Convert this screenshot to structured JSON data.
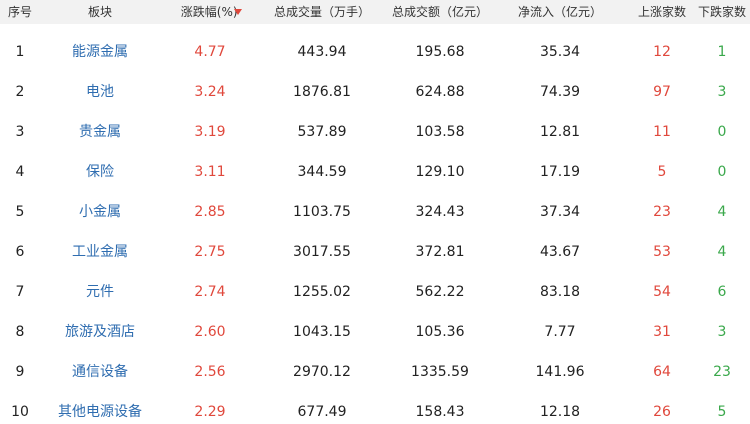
{
  "table": {
    "header": [
      "序号",
      "板块",
      "涨跌幅(%)",
      "总成交量（万手）",
      "总成交额（亿元）",
      "净流入（亿元）",
      "上涨家数",
      "下跌家数"
    ],
    "rows": [
      [
        "1",
        "能源金属",
        "4.77",
        "443.94",
        "195.68",
        "35.34",
        "12",
        "1"
      ],
      [
        "2",
        "电池",
        "3.24",
        "1876.81",
        "624.88",
        "74.39",
        "97",
        "3"
      ],
      [
        "3",
        "贵金属",
        "3.19",
        "537.89",
        "103.58",
        "12.81",
        "11",
        "0"
      ],
      [
        "4",
        "保险",
        "3.11",
        "344.59",
        "129.10",
        "17.19",
        "5",
        "0"
      ],
      [
        "5",
        "小金属",
        "2.85",
        "1103.75",
        "324.43",
        "37.34",
        "23",
        "4"
      ],
      [
        "6",
        "工业金属",
        "2.75",
        "3017.55",
        "372.81",
        "43.67",
        "53",
        "4"
      ],
      [
        "7",
        "元件",
        "2.74",
        "1255.02",
        "562.22",
        "83.18",
        "54",
        "6"
      ],
      [
        "8",
        "旅游及酒店",
        "2.60",
        "1043.15",
        "105.36",
        "7.77",
        "31",
        "3"
      ],
      [
        "9",
        "通信设备",
        "2.56",
        "2970.12",
        "1335.59",
        "141.96",
        "64",
        "23"
      ],
      [
        "10",
        "其他电源设备",
        "2.29",
        "677.49",
        "158.43",
        "12.18",
        "26",
        "5"
      ]
    ]
  }
}
